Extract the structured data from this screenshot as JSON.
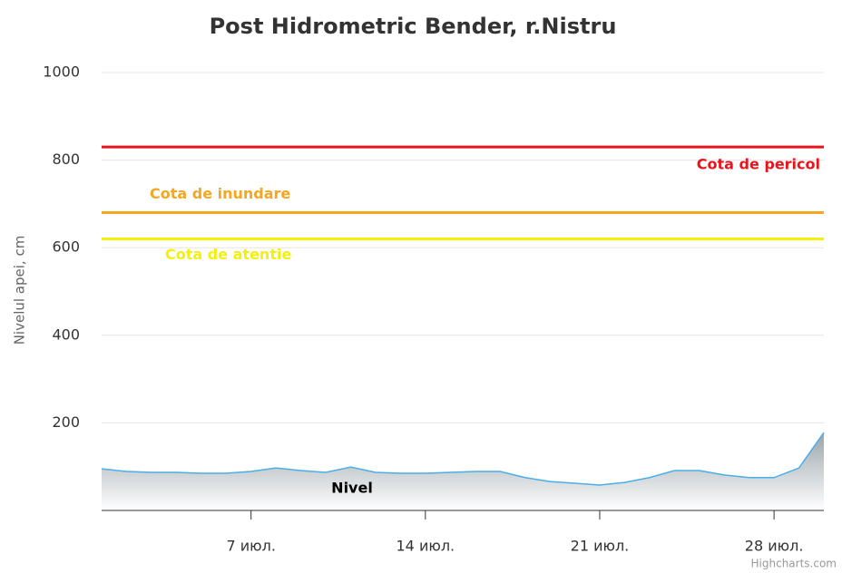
{
  "chart_data": {
    "type": "area",
    "title": "Post Hidrometric Bender, r.Nistru",
    "y_axis_label": "Nivelul apei, cm",
    "x": [
      1,
      2,
      3,
      4,
      5,
      6,
      7,
      8,
      9,
      10,
      11,
      12,
      13,
      14,
      15,
      16,
      17,
      18,
      19,
      20,
      21,
      22,
      23,
      24,
      25,
      26,
      27,
      28,
      29,
      30
    ],
    "series": [
      {
        "name": "Nivel",
        "color": "#4aaee8",
        "values": [
          95,
          89,
          87,
          87,
          85,
          85,
          89,
          97,
          91,
          87,
          99,
          87,
          85,
          85,
          87,
          89,
          89,
          75,
          66,
          62,
          58,
          64,
          75,
          91,
          91,
          81,
          75,
          75,
          97,
          178
        ]
      }
    ],
    "xlim": [
      1,
      30
    ],
    "xticks": [
      {
        "value": 7,
        "label": "7 июл."
      },
      {
        "value": 14,
        "label": "14 июл."
      },
      {
        "value": 21,
        "label": "21 июл."
      },
      {
        "value": 28,
        "label": "28 июл."
      }
    ],
    "ylim": [
      0,
      1000
    ],
    "yticks": [
      200,
      400,
      600,
      800,
      1000
    ],
    "grid": true,
    "plot_lines": [
      {
        "label": "Cota de pericol",
        "value": 830,
        "color": "#e8141b"
      },
      {
        "label": "Cota de inundare",
        "value": 680,
        "color": "#f5a623"
      },
      {
        "label": "Cota de atentie",
        "value": 620,
        "color": "#f5f00a"
      }
    ],
    "credits": "Highcharts.com"
  }
}
